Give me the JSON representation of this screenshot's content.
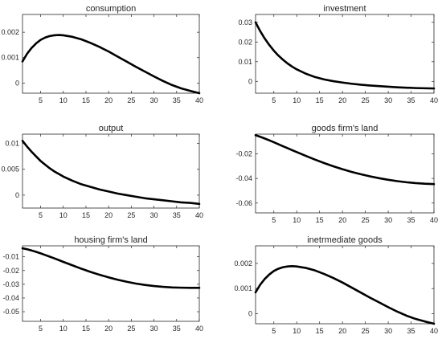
{
  "chart_data": [
    {
      "type": "line",
      "title": "consumption",
      "xlim": [
        1,
        40
      ],
      "ylim": [
        -0.0004,
        0.0027
      ],
      "xticks": [
        5,
        10,
        15,
        20,
        25,
        30,
        35,
        40
      ],
      "yticks": [
        0,
        0.001,
        0.002
      ],
      "ytick_labels": [
        "0",
        "0.001",
        "0.002"
      ],
      "grid": false,
      "series": [
        {
          "color": "#000000",
          "x": [
            1,
            2,
            3,
            4,
            5,
            6,
            7,
            8,
            9,
            10,
            12,
            14,
            16,
            18,
            20,
            22,
            24,
            26,
            28,
            30,
            32,
            34,
            36,
            38,
            40
          ],
          "y": [
            0.00085,
            0.00115,
            0.00138,
            0.00156,
            0.0017,
            0.00179,
            0.00185,
            0.00188,
            0.00189,
            0.00188,
            0.00182,
            0.00172,
            0.00158,
            0.00142,
            0.00124,
            0.00104,
            0.00084,
            0.00064,
            0.00045,
            0.00026,
            8e-05,
            -8e-05,
            -0.00021,
            -0.00031,
            -0.0004
          ]
        }
      ]
    },
    {
      "type": "line",
      "title": "investment",
      "xlim": [
        1,
        40
      ],
      "ylim": [
        -0.006,
        0.034
      ],
      "xticks": [
        5,
        10,
        15,
        20,
        25,
        30,
        35,
        40
      ],
      "yticks": [
        0,
        0.01,
        0.02,
        0.03
      ],
      "ytick_labels": [
        "0",
        "0.01",
        "0.02",
        "0.03"
      ],
      "grid": false,
      "series": [
        {
          "color": "#000000",
          "x": [
            1,
            2,
            3,
            4,
            5,
            6,
            7,
            8,
            9,
            10,
            12,
            14,
            16,
            18,
            20,
            22,
            24,
            26,
            28,
            30,
            32,
            34,
            36,
            38,
            40
          ],
          "y": [
            0.03,
            0.0256,
            0.0218,
            0.0185,
            0.0156,
            0.0131,
            0.011,
            0.0091,
            0.0075,
            0.0061,
            0.0039,
            0.0022,
            0.001,
            0.0001,
            -0.0006,
            -0.0012,
            -0.0017,
            -0.0021,
            -0.0024,
            -0.0027,
            -0.003,
            -0.0032,
            -0.0034,
            -0.0035,
            -0.0036
          ]
        }
      ]
    },
    {
      "type": "line",
      "title": "output",
      "xlim": [
        1,
        40
      ],
      "ylim": [
        -0.0025,
        0.0118
      ],
      "xticks": [
        5,
        10,
        15,
        20,
        25,
        30,
        35,
        40
      ],
      "yticks": [
        0,
        0.005,
        0.01
      ],
      "ytick_labels": [
        "0",
        "0.005",
        "0.01"
      ],
      "grid": false,
      "series": [
        {
          "color": "#000000",
          "x": [
            1,
            2,
            3,
            4,
            5,
            6,
            7,
            8,
            9,
            10,
            12,
            14,
            16,
            18,
            20,
            22,
            24,
            26,
            28,
            30,
            32,
            34,
            36,
            38,
            40
          ],
          "y": [
            0.0105,
            0.0094,
            0.0084,
            0.0075,
            0.0066,
            0.0059,
            0.0052,
            0.0046,
            0.0041,
            0.0036,
            0.0028,
            0.0021,
            0.0016,
            0.0011,
            0.0007,
            0.0003,
            0.0,
            -0.0003,
            -0.0006,
            -0.0008,
            -0.001,
            -0.0012,
            -0.0014,
            -0.0015,
            -0.0017
          ]
        }
      ]
    },
    {
      "type": "line",
      "title": "goods firm's land",
      "xlim": [
        1,
        40
      ],
      "ylim": [
        -0.068,
        -0.004
      ],
      "xticks": [
        5,
        10,
        15,
        20,
        25,
        30,
        35,
        40
      ],
      "yticks": [
        -0.06,
        -0.04,
        -0.02
      ],
      "ytick_labels": [
        "-0.06",
        "-0.04",
        "-0.02"
      ],
      "grid": false,
      "series": [
        {
          "color": "#000000",
          "x": [
            1,
            2,
            3,
            4,
            5,
            6,
            7,
            8,
            9,
            10,
            12,
            14,
            16,
            18,
            20,
            22,
            24,
            26,
            28,
            30,
            32,
            34,
            36,
            38,
            40
          ],
          "y": [
            -0.0048,
            -0.0061,
            -0.0075,
            -0.009,
            -0.0106,
            -0.0122,
            -0.0138,
            -0.0154,
            -0.017,
            -0.0186,
            -0.0217,
            -0.0247,
            -0.0275,
            -0.0301,
            -0.0325,
            -0.0347,
            -0.0366,
            -0.0383,
            -0.0398,
            -0.0411,
            -0.0422,
            -0.0431,
            -0.0438,
            -0.0443,
            -0.0446
          ]
        }
      ]
    },
    {
      "type": "line",
      "title": "housing firm's land",
      "xlim": [
        1,
        40
      ],
      "ylim": [
        -0.057,
        -0.002
      ],
      "xticks": [
        5,
        10,
        15,
        20,
        25,
        30,
        35,
        40
      ],
      "yticks": [
        -0.05,
        -0.04,
        -0.03,
        -0.02,
        -0.01
      ],
      "ytick_labels": [
        "-0.05",
        "-0.04",
        "-0.03",
        "-0.02",
        "-0.01"
      ],
      "grid": false,
      "series": [
        {
          "color": "#000000",
          "x": [
            1,
            2,
            3,
            4,
            5,
            6,
            7,
            8,
            9,
            10,
            12,
            14,
            16,
            18,
            20,
            22,
            24,
            26,
            28,
            30,
            32,
            34,
            36,
            38,
            40
          ],
          "y": [
            -0.0038,
            -0.0045,
            -0.0054,
            -0.0064,
            -0.0075,
            -0.0087,
            -0.0099,
            -0.0111,
            -0.0124,
            -0.0137,
            -0.0162,
            -0.0187,
            -0.021,
            -0.0231,
            -0.025,
            -0.0267,
            -0.0282,
            -0.0295,
            -0.0305,
            -0.0313,
            -0.0319,
            -0.0323,
            -0.0325,
            -0.0326,
            -0.0326
          ]
        }
      ]
    },
    {
      "type": "line",
      "title": "inetrmediate goods",
      "xlim": [
        1,
        40
      ],
      "ylim": [
        -0.0004,
        0.0027
      ],
      "xticks": [
        5,
        10,
        15,
        20,
        25,
        30,
        35,
        40
      ],
      "yticks": [
        0,
        0.001,
        0.002
      ],
      "ytick_labels": [
        "0",
        "0.001",
        "0.002"
      ],
      "grid": false,
      "series": [
        {
          "color": "#000000",
          "x": [
            1,
            2,
            3,
            4,
            5,
            6,
            7,
            8,
            9,
            10,
            12,
            14,
            16,
            18,
            20,
            22,
            24,
            26,
            28,
            30,
            32,
            34,
            36,
            38,
            40
          ],
          "y": [
            0.00085,
            0.00115,
            0.00138,
            0.00156,
            0.0017,
            0.00179,
            0.00185,
            0.00188,
            0.00189,
            0.00188,
            0.00182,
            0.00172,
            0.00158,
            0.00142,
            0.00124,
            0.00104,
            0.00084,
            0.00064,
            0.00045,
            0.00026,
            8e-05,
            -8e-05,
            -0.00021,
            -0.00031,
            -0.0004
          ]
        }
      ]
    }
  ]
}
